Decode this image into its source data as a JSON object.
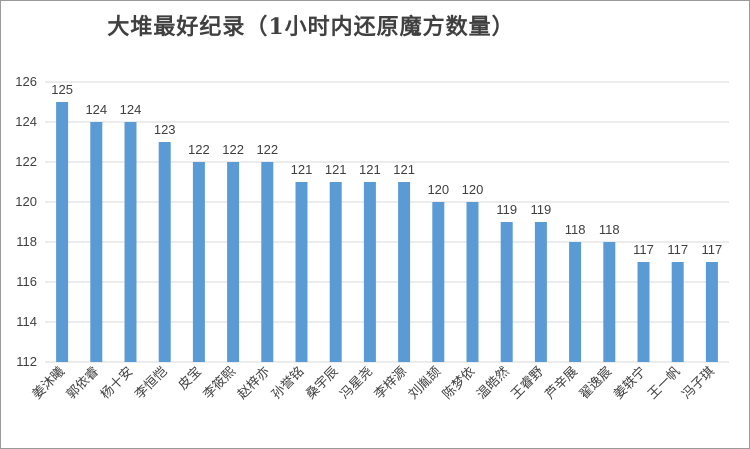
{
  "chart_data": {
    "type": "bar",
    "title": "大堆最好纪录（1小时内还原魔方数量）",
    "xlabel": "",
    "ylabel": "",
    "ylim": [
      112,
      126
    ],
    "ytick_step": 2,
    "grid": true,
    "legend": "none",
    "bar_color": "#5b9bd5",
    "categories": [
      "姜沐曦",
      "郭依睿",
      "杨十安",
      "李恒恺",
      "皮宝",
      "李筱熙",
      "赵梓亦",
      "孙誉铭",
      "桑宇辰",
      "冯星尧",
      "李梓源",
      "刘胤颉",
      "陈梦依",
      "温皓然",
      "王睿野",
      "芦辛展",
      "翟逸宸",
      "姜轶宁",
      "王一帆",
      "冯子琪"
    ],
    "values": [
      125,
      124,
      124,
      123,
      122,
      122,
      122,
      121,
      121,
      121,
      121,
      120,
      120,
      119,
      119,
      118,
      118,
      117,
      117,
      117
    ]
  }
}
